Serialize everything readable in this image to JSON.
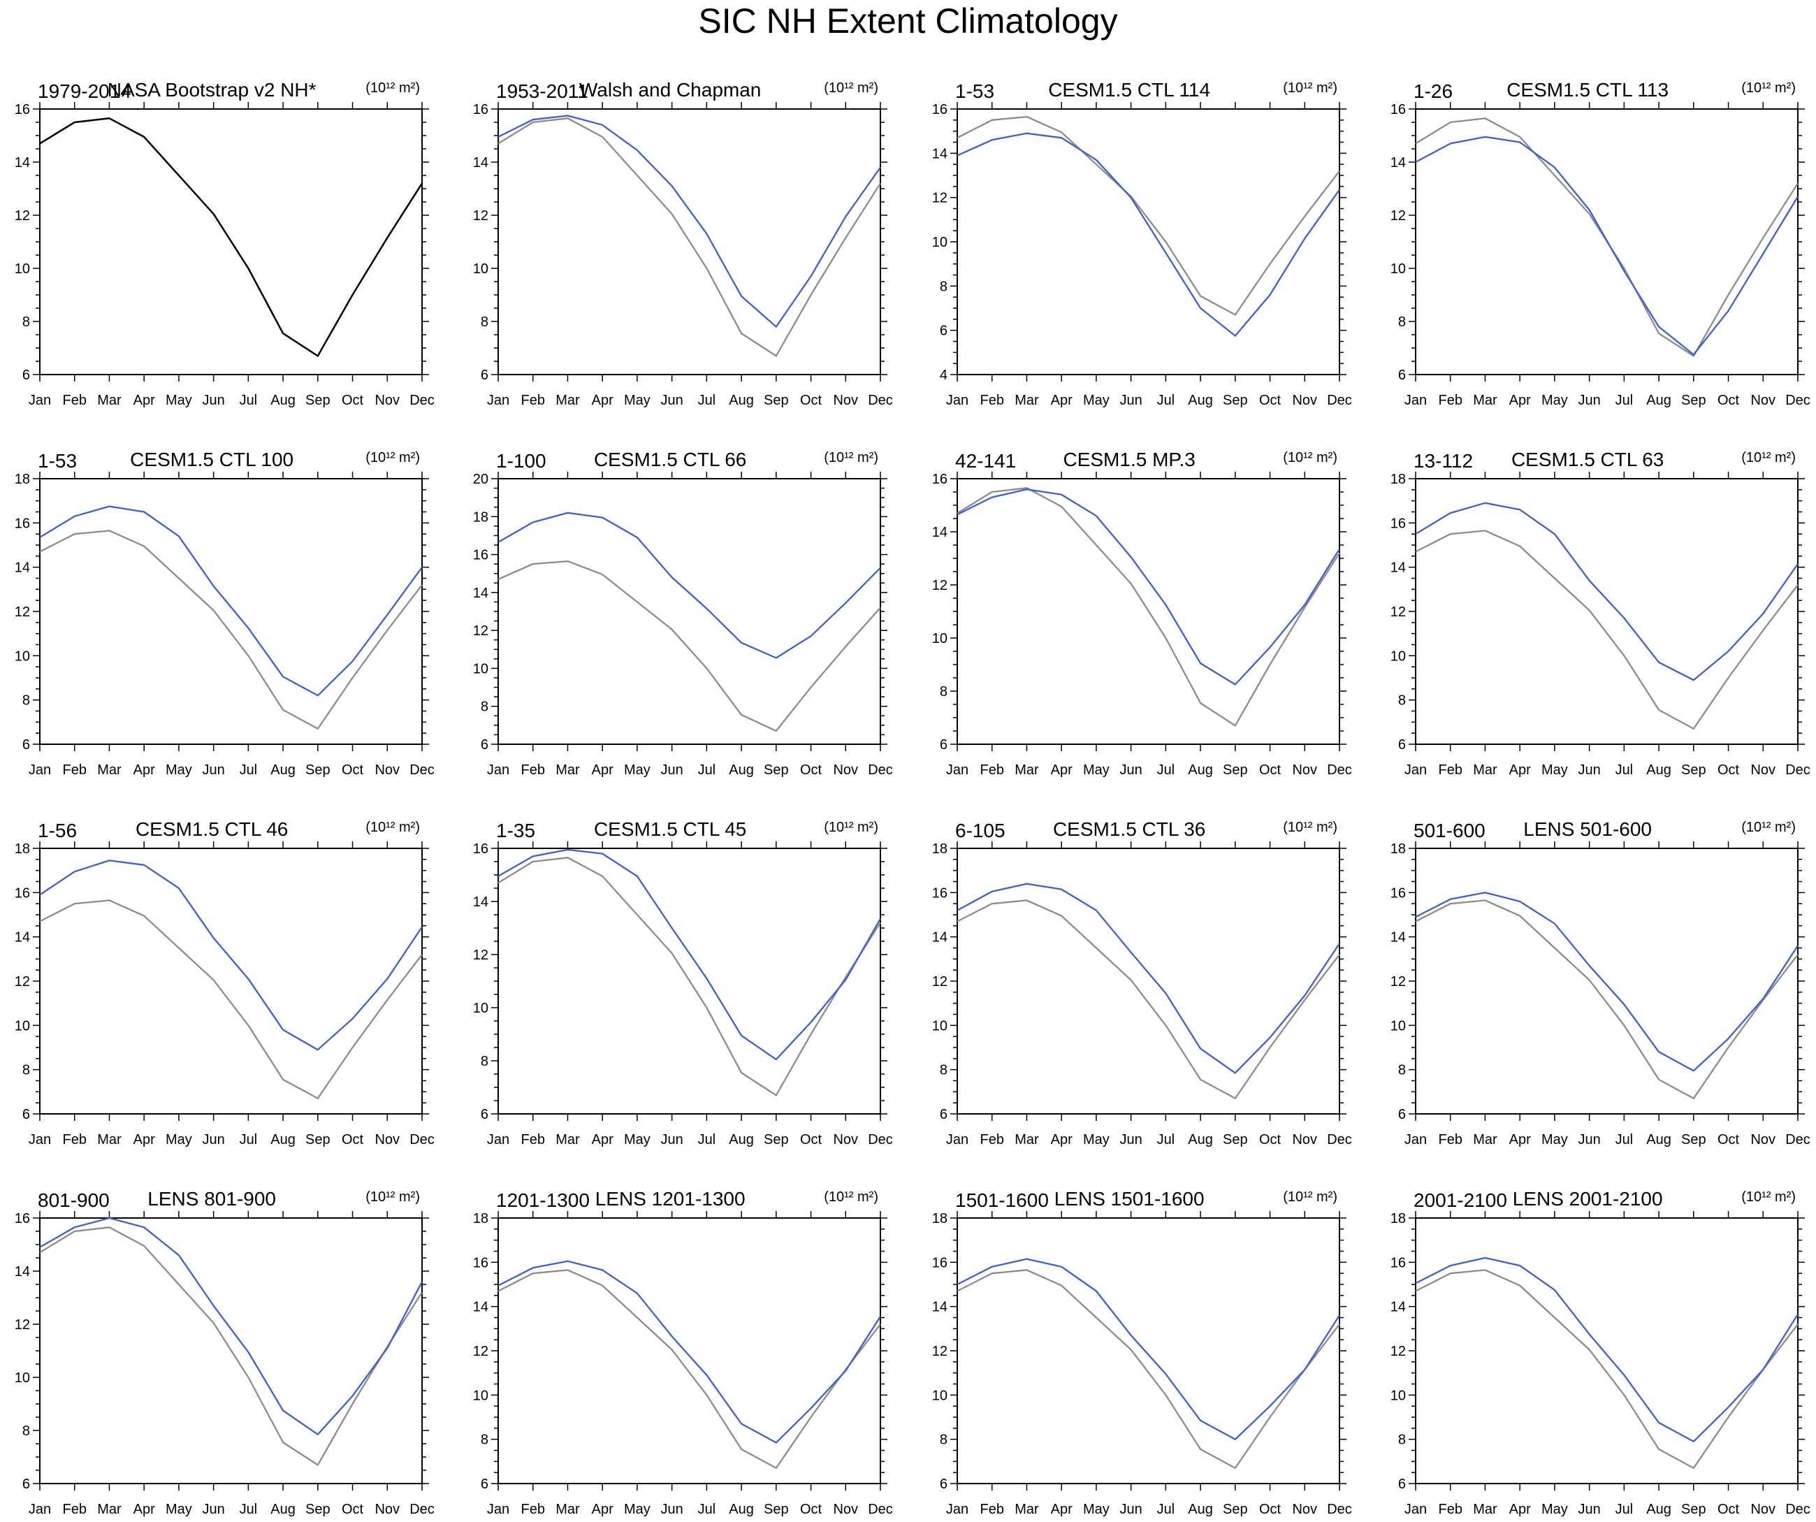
{
  "title": "SIC NH Extent Climatology",
  "colors": {
    "reference": "#8c8c8c",
    "reference_solo": "#000000",
    "model": "#3a5fd9",
    "axis": "#000000"
  },
  "chart_data": [
    {
      "type": "line",
      "left_label": "1979-2014",
      "center_label": "NASA Bootstrap v2 NH*",
      "units": "(10¹² m²)",
      "categories": [
        "Jan",
        "Feb",
        "Mar",
        "Apr",
        "May",
        "Jun",
        "Jul",
        "Aug",
        "Sep",
        "Oct",
        "Nov",
        "Dec"
      ],
      "ylim": [
        6,
        16
      ],
      "yticks": [
        "6",
        "8",
        "10",
        "12",
        "14",
        "16"
      ],
      "series": [
        {
          "role": "reference_solo",
          "values": [
            14.7,
            15.5,
            15.65,
            14.95,
            13.5,
            12.05,
            10.0,
            7.55,
            6.7,
            9.0,
            11.15,
            13.2
          ]
        }
      ]
    },
    {
      "type": "line",
      "left_label": "1953-2011",
      "center_label": "Walsh and Chapman",
      "units": "(10¹² m²)",
      "categories": [
        "Jan",
        "Feb",
        "Mar",
        "Apr",
        "May",
        "Jun",
        "Jul",
        "Aug",
        "Sep",
        "Oct",
        "Nov",
        "Dec"
      ],
      "ylim": [
        6,
        16
      ],
      "yticks": [
        "6",
        "8",
        "10",
        "12",
        "14",
        "16"
      ],
      "series": [
        {
          "role": "reference",
          "values": [
            14.7,
            15.5,
            15.65,
            14.95,
            13.5,
            12.05,
            10.0,
            7.55,
            6.7,
            9.0,
            11.15,
            13.2
          ]
        },
        {
          "role": "model",
          "values": [
            14.95,
            15.6,
            15.75,
            15.4,
            14.45,
            13.1,
            11.3,
            8.95,
            7.8,
            9.7,
            11.95,
            13.8
          ]
        }
      ]
    },
    {
      "type": "line",
      "left_label": "1-53",
      "center_label": "CESM1.5 CTL 114",
      "units": "(10¹² m²)",
      "categories": [
        "Jan",
        "Feb",
        "Mar",
        "Apr",
        "May",
        "Jun",
        "Jul",
        "Aug",
        "Sep",
        "Oct",
        "Nov",
        "Dec"
      ],
      "ylim": [
        4,
        16
      ],
      "yticks": [
        "4",
        "6",
        "8",
        "10",
        "12",
        "14",
        "16"
      ],
      "series": [
        {
          "role": "reference",
          "values": [
            14.7,
            15.5,
            15.65,
            14.95,
            13.5,
            12.05,
            10.0,
            7.55,
            6.7,
            9.0,
            11.15,
            13.2
          ]
        },
        {
          "role": "model",
          "values": [
            13.9,
            14.6,
            14.9,
            14.7,
            13.7,
            12.0,
            9.5,
            7.0,
            5.75,
            7.6,
            10.15,
            12.35
          ]
        }
      ]
    },
    {
      "type": "line",
      "left_label": "1-26",
      "center_label": "CESM1.5 CTL 113",
      "units": "(10¹² m²)",
      "categories": [
        "Jan",
        "Feb",
        "Mar",
        "Apr",
        "May",
        "Jun",
        "Jul",
        "Aug",
        "Sep",
        "Oct",
        "Nov",
        "Dec"
      ],
      "ylim": [
        6,
        16
      ],
      "yticks": [
        "6",
        "8",
        "10",
        "12",
        "14",
        "16"
      ],
      "series": [
        {
          "role": "reference",
          "values": [
            14.7,
            15.5,
            15.65,
            14.95,
            13.5,
            12.05,
            10.0,
            7.55,
            6.7,
            9.0,
            11.15,
            13.2
          ]
        },
        {
          "role": "model",
          "values": [
            14.0,
            14.7,
            14.95,
            14.75,
            13.8,
            12.2,
            9.9,
            7.8,
            6.75,
            8.4,
            10.55,
            12.7
          ]
        }
      ]
    },
    {
      "type": "line",
      "left_label": "1-53",
      "center_label": "CESM1.5 CTL 100",
      "units": "(10¹² m²)",
      "categories": [
        "Jan",
        "Feb",
        "Mar",
        "Apr",
        "May",
        "Jun",
        "Jul",
        "Aug",
        "Sep",
        "Oct",
        "Nov",
        "Dec"
      ],
      "ylim": [
        6,
        18
      ],
      "yticks": [
        "6",
        "8",
        "10",
        "12",
        "14",
        "16",
        "18"
      ],
      "series": [
        {
          "role": "reference",
          "values": [
            14.7,
            15.5,
            15.65,
            14.95,
            13.5,
            12.05,
            10.0,
            7.55,
            6.7,
            9.0,
            11.15,
            13.2
          ]
        },
        {
          "role": "model",
          "values": [
            15.35,
            16.3,
            16.75,
            16.5,
            15.4,
            13.15,
            11.25,
            9.05,
            8.2,
            9.75,
            11.85,
            14.0
          ]
        }
      ]
    },
    {
      "type": "line",
      "left_label": "1-100",
      "center_label": "CESM1.5 CTL 66",
      "units": "(10¹² m²)",
      "categories": [
        "Jan",
        "Feb",
        "Mar",
        "Apr",
        "May",
        "Jun",
        "Jul",
        "Aug",
        "Sep",
        "Oct",
        "Nov",
        "Dec"
      ],
      "ylim": [
        6,
        20
      ],
      "yticks": [
        "6",
        "8",
        "10",
        "12",
        "14",
        "16",
        "18",
        "20"
      ],
      "series": [
        {
          "role": "reference",
          "values": [
            14.7,
            15.5,
            15.65,
            14.95,
            13.5,
            12.05,
            10.0,
            7.55,
            6.7,
            9.0,
            11.15,
            13.2
          ]
        },
        {
          "role": "model",
          "values": [
            16.65,
            17.7,
            18.2,
            17.95,
            16.9,
            14.8,
            13.15,
            11.35,
            10.55,
            11.7,
            13.45,
            15.3
          ]
        }
      ]
    },
    {
      "type": "line",
      "left_label": "42-141",
      "center_label": "CESM1.5 MP.3",
      "units": "(10¹² m²)",
      "categories": [
        "Jan",
        "Feb",
        "Mar",
        "Apr",
        "May",
        "Jun",
        "Jul",
        "Aug",
        "Sep",
        "Oct",
        "Nov",
        "Dec"
      ],
      "ylim": [
        6,
        16
      ],
      "yticks": [
        "6",
        "8",
        "10",
        "12",
        "14",
        "16"
      ],
      "series": [
        {
          "role": "reference",
          "values": [
            14.7,
            15.5,
            15.65,
            14.95,
            13.5,
            12.05,
            10.0,
            7.55,
            6.7,
            9.0,
            11.15,
            13.2
          ]
        },
        {
          "role": "model",
          "values": [
            14.65,
            15.3,
            15.6,
            15.4,
            14.6,
            13.05,
            11.25,
            9.05,
            8.25,
            9.65,
            11.25,
            13.35
          ]
        }
      ]
    },
    {
      "type": "line",
      "left_label": "13-112",
      "center_label": "CESM1.5 CTL 63",
      "units": "(10¹² m²)",
      "categories": [
        "Jan",
        "Feb",
        "Mar",
        "Apr",
        "May",
        "Jun",
        "Jul",
        "Aug",
        "Sep",
        "Oct",
        "Nov",
        "Dec"
      ],
      "ylim": [
        6,
        18
      ],
      "yticks": [
        "6",
        "8",
        "10",
        "12",
        "14",
        "16",
        "18"
      ],
      "series": [
        {
          "role": "reference",
          "values": [
            14.7,
            15.5,
            15.65,
            14.95,
            13.5,
            12.05,
            10.0,
            7.55,
            6.7,
            9.0,
            11.15,
            13.2
          ]
        },
        {
          "role": "model",
          "values": [
            15.5,
            16.45,
            16.9,
            16.6,
            15.5,
            13.4,
            11.7,
            9.7,
            8.9,
            10.2,
            11.9,
            14.15
          ]
        }
      ]
    },
    {
      "type": "line",
      "left_label": "1-56",
      "center_label": "CESM1.5 CTL 46",
      "units": "(10¹² m²)",
      "categories": [
        "Jan",
        "Feb",
        "Mar",
        "Apr",
        "May",
        "Jun",
        "Jul",
        "Aug",
        "Sep",
        "Oct",
        "Nov",
        "Dec"
      ],
      "ylim": [
        6,
        18
      ],
      "yticks": [
        "6",
        "8",
        "10",
        "12",
        "14",
        "16",
        "18"
      ],
      "series": [
        {
          "role": "reference",
          "values": [
            14.7,
            15.5,
            15.65,
            14.95,
            13.5,
            12.05,
            10.0,
            7.55,
            6.7,
            9.0,
            11.15,
            13.2
          ]
        },
        {
          "role": "model",
          "values": [
            15.9,
            16.95,
            17.45,
            17.25,
            16.2,
            13.95,
            12.1,
            9.8,
            8.9,
            10.3,
            12.1,
            14.45
          ]
        }
      ]
    },
    {
      "type": "line",
      "left_label": "1-35",
      "center_label": "CESM1.5 CTL 45",
      "units": "(10¹² m²)",
      "categories": [
        "Jan",
        "Feb",
        "Mar",
        "Apr",
        "May",
        "Jun",
        "Jul",
        "Aug",
        "Sep",
        "Oct",
        "Nov",
        "Dec"
      ],
      "ylim": [
        6,
        16
      ],
      "yticks": [
        "6",
        "8",
        "10",
        "12",
        "14",
        "16"
      ],
      "series": [
        {
          "role": "reference",
          "values": [
            14.7,
            15.5,
            15.65,
            14.95,
            13.5,
            12.05,
            10.0,
            7.55,
            6.7,
            9.0,
            11.15,
            13.2
          ]
        },
        {
          "role": "model",
          "values": [
            14.95,
            15.7,
            15.95,
            15.8,
            14.95,
            13.0,
            11.1,
            8.95,
            8.05,
            9.45,
            11.05,
            13.35
          ]
        }
      ]
    },
    {
      "type": "line",
      "left_label": "6-105",
      "center_label": "CESM1.5 CTL 36",
      "units": "(10¹² m²)",
      "categories": [
        "Jan",
        "Feb",
        "Mar",
        "Apr",
        "May",
        "Jun",
        "Jul",
        "Aug",
        "Sep",
        "Oct",
        "Nov",
        "Dec"
      ],
      "ylim": [
        6,
        18
      ],
      "yticks": [
        "6",
        "8",
        "10",
        "12",
        "14",
        "16",
        "18"
      ],
      "series": [
        {
          "role": "reference",
          "values": [
            14.7,
            15.5,
            15.65,
            14.95,
            13.5,
            12.05,
            10.0,
            7.55,
            6.7,
            9.0,
            11.15,
            13.2
          ]
        },
        {
          "role": "model",
          "values": [
            15.2,
            16.05,
            16.4,
            16.15,
            15.2,
            13.3,
            11.45,
            8.95,
            7.85,
            9.45,
            11.35,
            13.7
          ]
        }
      ]
    },
    {
      "type": "line",
      "left_label": "501-600",
      "center_label": "LENS 501-600",
      "units": "(10¹² m²)",
      "categories": [
        "Jan",
        "Feb",
        "Mar",
        "Apr",
        "May",
        "Jun",
        "Jul",
        "Aug",
        "Sep",
        "Oct",
        "Nov",
        "Dec"
      ],
      "ylim": [
        6,
        18
      ],
      "yticks": [
        "6",
        "8",
        "10",
        "12",
        "14",
        "16",
        "18"
      ],
      "series": [
        {
          "role": "reference",
          "values": [
            14.7,
            15.5,
            15.65,
            14.95,
            13.5,
            12.05,
            10.0,
            7.55,
            6.7,
            9.0,
            11.15,
            13.2
          ]
        },
        {
          "role": "model",
          "values": [
            14.9,
            15.7,
            16.0,
            15.6,
            14.6,
            12.7,
            10.95,
            8.8,
            7.95,
            9.4,
            11.2,
            13.6
          ]
        }
      ]
    },
    {
      "type": "line",
      "left_label": "801-900",
      "center_label": "LENS 801-900",
      "units": "(10¹² m²)",
      "categories": [
        "Jan",
        "Feb",
        "Mar",
        "Apr",
        "May",
        "Jun",
        "Jul",
        "Aug",
        "Sep",
        "Oct",
        "Nov",
        "Dec"
      ],
      "ylim": [
        6,
        16
      ],
      "yticks": [
        "6",
        "8",
        "10",
        "12",
        "14",
        "16"
      ],
      "series": [
        {
          "role": "reference",
          "values": [
            14.7,
            15.5,
            15.65,
            14.95,
            13.5,
            12.05,
            10.0,
            7.55,
            6.7,
            9.0,
            11.15,
            13.2
          ]
        },
        {
          "role": "model",
          "values": [
            14.9,
            15.65,
            16.0,
            15.65,
            14.6,
            12.7,
            10.95,
            8.75,
            7.85,
            9.3,
            11.1,
            13.6
          ]
        }
      ]
    },
    {
      "type": "line",
      "left_label": "1201-1300",
      "center_label": "LENS 1201-1300",
      "units": "(10¹² m²)",
      "categories": [
        "Jan",
        "Feb",
        "Mar",
        "Apr",
        "May",
        "Jun",
        "Jul",
        "Aug",
        "Sep",
        "Oct",
        "Nov",
        "Dec"
      ],
      "ylim": [
        6,
        18
      ],
      "yticks": [
        "6",
        "8",
        "10",
        "12",
        "14",
        "16",
        "18"
      ],
      "series": [
        {
          "role": "reference",
          "values": [
            14.7,
            15.5,
            15.65,
            14.95,
            13.5,
            12.05,
            10.0,
            7.55,
            6.7,
            9.0,
            11.15,
            13.2
          ]
        },
        {
          "role": "model",
          "values": [
            14.95,
            15.75,
            16.05,
            15.65,
            14.6,
            12.65,
            10.9,
            8.7,
            7.85,
            9.4,
            11.1,
            13.55
          ]
        }
      ]
    },
    {
      "type": "line",
      "left_label": "1501-1600",
      "center_label": "LENS 1501-1600",
      "units": "(10¹² m²)",
      "categories": [
        "Jan",
        "Feb",
        "Mar",
        "Apr",
        "May",
        "Jun",
        "Jul",
        "Aug",
        "Sep",
        "Oct",
        "Nov",
        "Dec"
      ],
      "ylim": [
        6,
        18
      ],
      "yticks": [
        "6",
        "8",
        "10",
        "12",
        "14",
        "16",
        "18"
      ],
      "series": [
        {
          "role": "reference",
          "values": [
            14.7,
            15.5,
            15.65,
            14.95,
            13.5,
            12.05,
            10.0,
            7.55,
            6.7,
            9.0,
            11.15,
            13.2
          ]
        },
        {
          "role": "model",
          "values": [
            15.0,
            15.8,
            16.15,
            15.8,
            14.7,
            12.7,
            10.95,
            8.85,
            8.0,
            9.5,
            11.15,
            13.6
          ]
        }
      ]
    },
    {
      "type": "line",
      "left_label": "2001-2100",
      "center_label": "LENS 2001-2100",
      "units": "(10¹² m²)",
      "categories": [
        "Jan",
        "Feb",
        "Mar",
        "Apr",
        "May",
        "Jun",
        "Jul",
        "Aug",
        "Sep",
        "Oct",
        "Nov",
        "Dec"
      ],
      "ylim": [
        6,
        18
      ],
      "yticks": [
        "6",
        "8",
        "10",
        "12",
        "14",
        "16",
        "18"
      ],
      "series": [
        {
          "role": "reference",
          "values": [
            14.7,
            15.5,
            15.65,
            14.95,
            13.5,
            12.05,
            10.0,
            7.55,
            6.7,
            9.0,
            11.15,
            13.2
          ]
        },
        {
          "role": "model",
          "values": [
            15.05,
            15.85,
            16.2,
            15.85,
            14.75,
            12.75,
            10.9,
            8.75,
            7.9,
            9.45,
            11.15,
            13.65
          ]
        }
      ]
    }
  ]
}
